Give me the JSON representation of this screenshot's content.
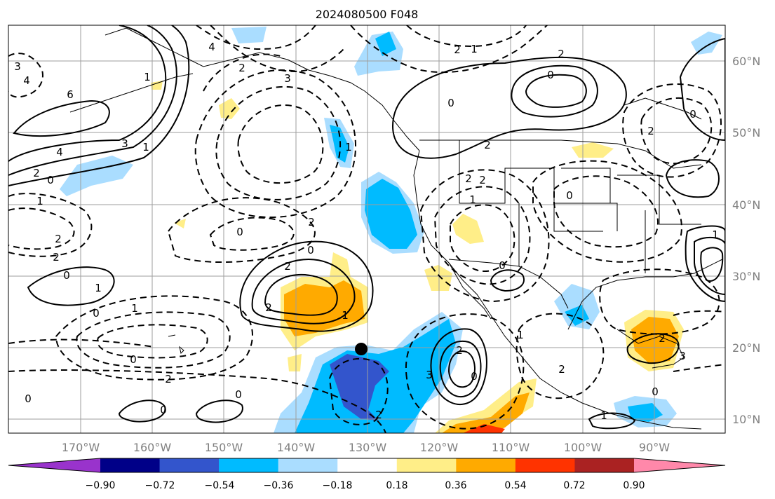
{
  "title": "2024080500 F048",
  "lon_labels": [
    "170°W",
    "160°W",
    "150°W",
    "140°W",
    "130°W",
    "120°W",
    "110°W",
    "100°W",
    "90°W"
  ],
  "lat_labels": [
    "60°N",
    "50°N",
    "40°N",
    "30°N",
    "20°N",
    "10°N"
  ],
  "colorbar": {
    "ticks": [
      "−0.90",
      "−0.72",
      "−0.54",
      "−0.36",
      "−0.18",
      "0.18",
      "0.36",
      "0.54",
      "0.72",
      "0.90"
    ],
    "colors": [
      "#9933cc",
      "#000088",
      "#3355cc",
      "#00bbff",
      "#aaddff",
      "#ffffff",
      "#ffee88",
      "#ffaa00",
      "#ff3300",
      "#aa2222",
      "#ff88aa"
    ]
  },
  "contour_labels": [
    "3",
    "4",
    "6",
    "4",
    "2",
    "0",
    "1",
    "3",
    "1",
    "1",
    "2",
    "2",
    "0",
    "1",
    "0",
    "1",
    "0",
    "2",
    "0",
    "0",
    "0",
    "4",
    "3",
    "2",
    "2",
    "0",
    "2",
    "1",
    "0",
    "2",
    "1",
    "2",
    "3",
    "2",
    "0",
    "0",
    "2",
    "2",
    "1",
    "2",
    "0",
    "1",
    "2",
    "1",
    "0",
    "3",
    "2",
    "0",
    "2",
    "1",
    "2",
    "2",
    "0",
    "1",
    "0"
  ],
  "markers": {
    "dot_color": "#000000"
  }
}
